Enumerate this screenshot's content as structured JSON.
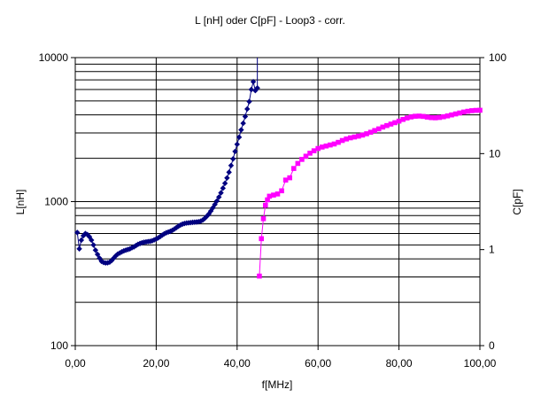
{
  "chart_data": {
    "type": "scatter",
    "title": "L [nH] oder C[pF] - Loop3 - corr.",
    "xlabel": "f[MHz]",
    "ylabel_left": "L[nH]",
    "ylabel_right": "C[pF]",
    "x_axis": {
      "min": 0,
      "max": 100,
      "ticks": [
        0,
        20,
        40,
        60,
        80,
        100
      ],
      "tick_labels": [
        "0,00",
        "20,00",
        "40,00",
        "60,00",
        "80,00",
        "100,00"
      ]
    },
    "y_left": {
      "scale": "log",
      "min": 100,
      "max": 10000,
      "ticks": [
        100,
        1000,
        10000
      ],
      "tick_labels": [
        "100",
        "1000",
        "10000"
      ]
    },
    "y_right": {
      "scale": "log",
      "min": 0.1,
      "max": 100,
      "ticks": [
        0.1,
        1,
        10,
        100
      ],
      "tick_labels": [
        "0",
        "1",
        "10",
        "100"
      ]
    },
    "grid": true,
    "series": [
      {
        "axis": "left",
        "marker": "diamond",
        "color": "#000080",
        "points": [
          [
            0.5,
            610
          ],
          [
            1,
            470
          ],
          [
            1.5,
            540
          ],
          [
            2,
            580
          ],
          [
            2.5,
            600
          ],
          [
            3,
            590
          ],
          [
            3.5,
            570
          ],
          [
            4,
            540
          ],
          [
            4.5,
            500
          ],
          [
            5,
            460
          ],
          [
            5.5,
            430
          ],
          [
            6,
            405
          ],
          [
            6.5,
            385
          ],
          [
            7,
            378
          ],
          [
            7.5,
            375
          ],
          [
            8,
            376
          ],
          [
            8.5,
            380
          ],
          [
            9,
            390
          ],
          [
            9.5,
            405
          ],
          [
            10,
            420
          ],
          [
            10.5,
            432
          ],
          [
            11,
            440
          ],
          [
            11.5,
            448
          ],
          [
            12,
            455
          ],
          [
            12.5,
            460
          ],
          [
            13,
            465
          ],
          [
            13.5,
            470
          ],
          [
            14,
            478
          ],
          [
            14.5,
            485
          ],
          [
            15,
            495
          ],
          [
            15.5,
            505
          ],
          [
            16,
            512
          ],
          [
            16.5,
            518
          ],
          [
            17,
            522
          ],
          [
            17.5,
            525
          ],
          [
            18,
            528
          ],
          [
            18.5,
            530
          ],
          [
            19,
            535
          ],
          [
            19.5,
            542
          ],
          [
            20,
            550
          ],
          [
            20.5,
            560
          ],
          [
            21,
            572
          ],
          [
            21.5,
            585
          ],
          [
            22,
            598
          ],
          [
            22.5,
            608
          ],
          [
            23,
            615
          ],
          [
            23.5,
            622
          ],
          [
            24,
            632
          ],
          [
            24.5,
            645
          ],
          [
            25,
            660
          ],
          [
            25.5,
            675
          ],
          [
            26,
            688
          ],
          [
            26.5,
            698
          ],
          [
            27,
            705
          ],
          [
            27.5,
            710
          ],
          [
            28,
            712
          ],
          [
            28.5,
            715
          ],
          [
            29,
            718
          ],
          [
            29.5,
            720
          ],
          [
            30,
            722
          ],
          [
            30.5,
            725
          ],
          [
            31,
            732
          ],
          [
            31.5,
            745
          ],
          [
            32,
            765
          ],
          [
            32.5,
            790
          ],
          [
            33,
            820
          ],
          [
            33.5,
            860
          ],
          [
            34,
            905
          ],
          [
            34.5,
            955
          ],
          [
            35,
            1010
          ],
          [
            35.5,
            1075
          ],
          [
            36,
            1150
          ],
          [
            36.5,
            1240
          ],
          [
            37,
            1340
          ],
          [
            37.5,
            1460
          ],
          [
            38,
            1600
          ],
          [
            38.5,
            1780
          ],
          [
            39,
            1980
          ],
          [
            39.5,
            2230
          ],
          [
            40,
            2500
          ],
          [
            40.5,
            2800
          ],
          [
            41,
            3150
          ],
          [
            41.5,
            3500
          ],
          [
            42,
            3900
          ],
          [
            42.5,
            4400
          ],
          [
            43,
            4950
          ],
          [
            43.5,
            6000
          ],
          [
            44,
            6800
          ],
          [
            44.5,
            5900
          ],
          [
            45,
            6150
          ]
        ]
      },
      {
        "axis": "right",
        "marker": "square",
        "color": "#FF00FF",
        "points": [
          [
            45.5,
            0.53
          ],
          [
            46,
            1.3
          ],
          [
            46.5,
            2.1
          ],
          [
            47,
            2.9
          ],
          [
            47.5,
            3.3
          ],
          [
            48,
            3.6
          ],
          [
            49,
            3.7
          ],
          [
            50,
            3.8
          ],
          [
            51,
            4.1
          ],
          [
            52,
            5.3
          ],
          [
            53,
            5.6
          ],
          [
            54,
            7.0
          ],
          [
            55,
            7.9
          ],
          [
            56,
            8.7
          ],
          [
            57,
            9.4
          ],
          [
            58,
            10.1
          ],
          [
            59,
            10.7
          ],
          [
            60,
            11.3
          ],
          [
            61,
            11.7
          ],
          [
            62,
            12.0
          ],
          [
            63,
            12.3
          ],
          [
            64,
            12.6
          ],
          [
            65,
            13.1
          ],
          [
            66,
            13.7
          ],
          [
            67,
            14.2
          ],
          [
            68,
            14.6
          ],
          [
            69,
            14.9
          ],
          [
            70,
            15.2
          ],
          [
            71,
            15.6
          ],
          [
            72,
            16.1
          ],
          [
            73,
            16.7
          ],
          [
            74,
            17.4
          ],
          [
            75,
            18.1
          ],
          [
            76,
            18.9
          ],
          [
            77,
            19.6
          ],
          [
            78,
            20.3
          ],
          [
            79,
            21.0
          ],
          [
            80,
            21.8
          ],
          [
            81,
            22.7
          ],
          [
            82,
            23.5
          ],
          [
            83,
            24.1
          ],
          [
            84,
            24.5
          ],
          [
            85,
            24.6
          ],
          [
            86,
            24.4
          ],
          [
            87,
            24.0
          ],
          [
            88,
            23.7
          ],
          [
            89,
            23.6
          ],
          [
            90,
            23.8
          ],
          [
            91,
            24.2
          ],
          [
            92,
            24.7
          ],
          [
            93,
            25.3
          ],
          [
            94,
            25.9
          ],
          [
            95,
            26.5
          ],
          [
            96,
            27.1
          ],
          [
            97,
            27.6
          ],
          [
            98,
            28.0
          ],
          [
            99,
            28.2
          ],
          [
            100,
            28.3
          ]
        ]
      }
    ]
  }
}
